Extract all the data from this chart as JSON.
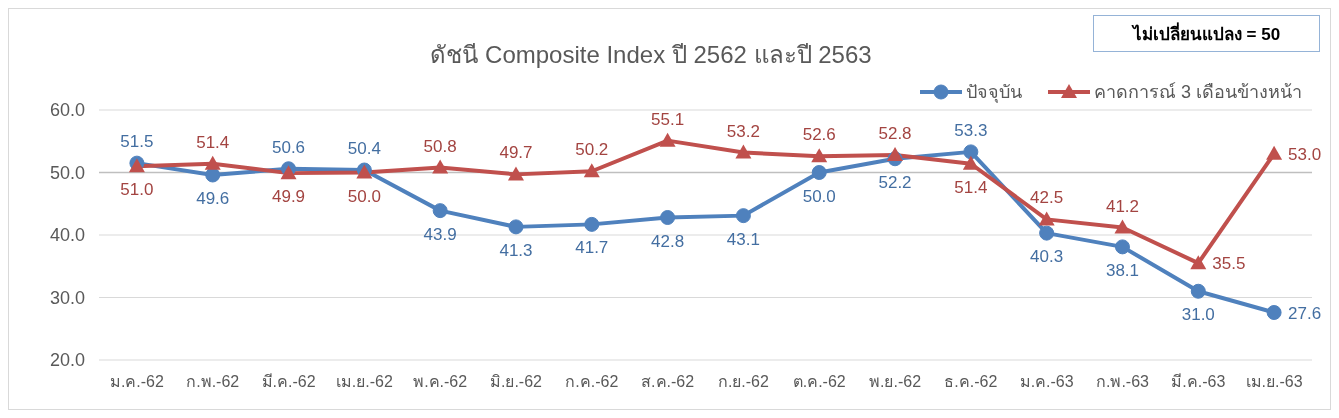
{
  "chart_data": {
    "type": "line",
    "title": "ดัชนี Composite Index ปี 2562 และปี 2563",
    "categories": [
      "ม.ค.-62",
      "ก.พ.-62",
      "มี.ค.-62",
      "เม.ย.-62",
      "พ.ค.-62",
      "มิ.ย.-62",
      "ก.ค.-62",
      "ส.ค.-62",
      "ก.ย.-62",
      "ต.ค.-62",
      "พ.ย.-62",
      "ธ.ค.-62",
      "ม.ค.-63",
      "ก.พ.-63",
      "มี.ค.-63",
      "เม.ย.-63"
    ],
    "series": [
      {
        "name": "ปัจจุบัน",
        "color": "#4f81bd",
        "marker": "circle",
        "values": [
          51.5,
          49.6,
          50.6,
          50.4,
          43.9,
          41.3,
          41.7,
          42.8,
          43.1,
          50.0,
          52.2,
          53.3,
          40.3,
          38.1,
          31.0,
          27.6
        ],
        "value_labels": [
          "51.5",
          "49.6",
          "50.6",
          "50.4",
          "43.9",
          "41.3",
          "41.7",
          "42.8",
          "43.1",
          "50.0",
          "52.2",
          "53.3",
          "40.3",
          "38.1",
          "31.0",
          "27.6"
        ]
      },
      {
        "name": "คาดการณ์ 3 เดือนข้างหน้า",
        "color": "#c0504d",
        "marker": "triangle",
        "values": [
          51.0,
          51.4,
          49.9,
          50.0,
          50.8,
          49.7,
          50.2,
          55.1,
          53.2,
          52.6,
          52.8,
          51.4,
          42.5,
          41.2,
          35.5,
          53.0
        ],
        "value_labels": [
          "51.0",
          "51.4",
          "49.9",
          "50.0",
          "50.8",
          "49.7",
          "50.2",
          "55.1",
          "53.2",
          "52.6",
          "52.8",
          "51.4",
          "42.5",
          "41.2",
          "35.5",
          "53.0"
        ]
      }
    ],
    "ylim": [
      20,
      60
    ],
    "yticks": [
      {
        "value": 20,
        "label": "20.0"
      },
      {
        "value": 30,
        "label": "30.0"
      },
      {
        "value": 40,
        "label": "40.0"
      },
      {
        "value": 50,
        "label": "50.0"
      },
      {
        "value": 60,
        "label": "60.0"
      }
    ],
    "grid": "y",
    "legend": "top right",
    "line_style": "solid",
    "ref_lines": [
      {
        "axis": "y",
        "value": 50,
        "color": "#bfbfbf"
      }
    ],
    "annotations": [
      "ไม่เปลี่ยนแปลง = 50"
    ]
  }
}
